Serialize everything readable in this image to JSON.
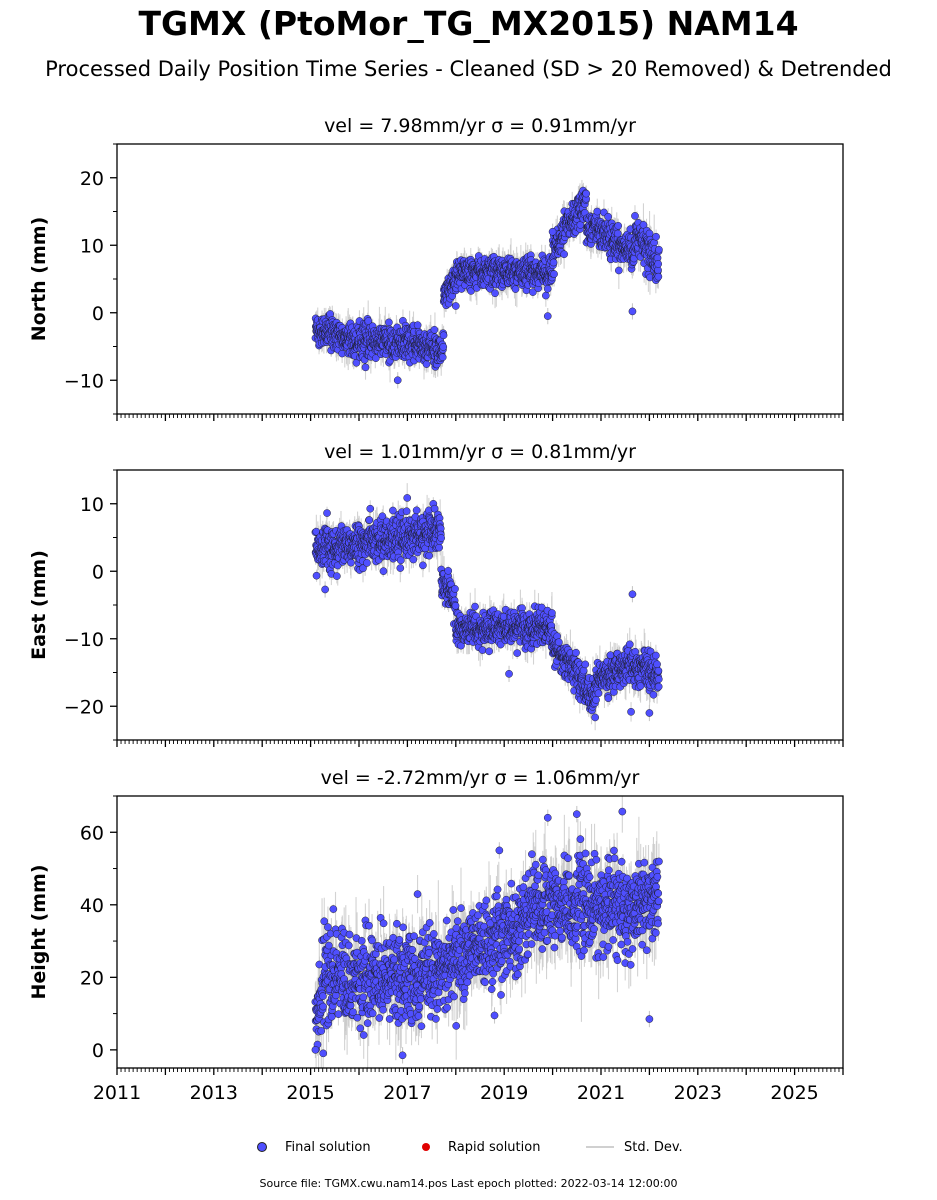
{
  "title": "TGMX (PtoMor_TG_MX2015) NAM14",
  "subtitle": "Processed Daily Position Time Series - Cleaned (SD > 20 Removed) & Detrended",
  "legend": {
    "final_label": "Final solution",
    "rapid_label": "Rapid solution",
    "std_label": "Std. Dev."
  },
  "footer": "Source file: TGMX.cwu.nam14.pos  Last epoch plotted: 2022-03-14 12:00:00",
  "colors": {
    "final": "#4f4fff",
    "rapid": "#e00000",
    "std": "#c8c8c8"
  },
  "chart_data": [
    {
      "type": "scatter",
      "title": "vel = 7.98mm/yr   σ = 0.91mm/yr",
      "ylabel": "North (mm)",
      "xlim": [
        2011,
        2026
      ],
      "ylim": [
        -15,
        25
      ],
      "yticks": [
        -10,
        0,
        10,
        20
      ],
      "ytick_labels": [
        "−10",
        "0",
        "10",
        "20"
      ],
      "xticks": [
        2011,
        2013,
        2015,
        2017,
        2019,
        2021,
        2023,
        2025
      ],
      "series": [
        {
          "name": "Final solution",
          "segments": [
            {
              "start": 2015.1,
              "end": 2017.75,
              "level": [
                -2.5,
                -4,
                -4.5,
                -5.5
              ],
              "noise": 1.2
            },
            {
              "start": 2017.75,
              "end": 2018.0,
              "level": [
                2,
                5
              ],
              "noise": 1.0
            },
            {
              "start": 2018.0,
              "end": 2020.0,
              "level": [
                6,
                6
              ],
              "noise": 1.1
            },
            {
              "start": 2020.0,
              "end": 2020.7,
              "level": [
                9,
                17
              ],
              "noise": 1.2
            },
            {
              "start": 2020.7,
              "end": 2021.7,
              "level": [
                13,
                9
              ],
              "noise": 1.2
            },
            {
              "start": 2021.7,
              "end": 2022.2,
              "level": [
                12,
                7
              ],
              "noise": 1.5
            }
          ],
          "outliers": [
            {
              "x": 2016.8,
              "y": -10
            },
            {
              "x": 2019.9,
              "y": -0.5
            },
            {
              "x": 2021.65,
              "y": 0.2
            },
            {
              "x": 2018.0,
              "y": 1
            },
            {
              "x": 2020.0,
              "y": 12
            }
          ]
        }
      ]
    },
    {
      "type": "scatter",
      "title": "vel = 1.01mm/yr   σ = 0.81mm/yr",
      "ylabel": "East (mm)",
      "xlim": [
        2011,
        2026
      ],
      "ylim": [
        -25,
        15
      ],
      "yticks": [
        -20,
        -10,
        0,
        10
      ],
      "ytick_labels": [
        "−20",
        "−10",
        "0",
        "10"
      ],
      "xticks": [
        2011,
        2013,
        2015,
        2017,
        2019,
        2021,
        2023,
        2025
      ],
      "series": [
        {
          "name": "Final solution",
          "segments": [
            {
              "start": 2015.1,
              "end": 2017.7,
              "level": [
                3,
                4.5,
                6
              ],
              "noise": 1.5
            },
            {
              "start": 2017.7,
              "end": 2018.0,
              "level": [
                -1,
                -5
              ],
              "noise": 1.2
            },
            {
              "start": 2018.0,
              "end": 2020.0,
              "level": [
                -8.5,
                -8.5
              ],
              "noise": 1.2
            },
            {
              "start": 2020.0,
              "end": 2020.9,
              "level": [
                -11,
                -19
              ],
              "noise": 1.3
            },
            {
              "start": 2020.9,
              "end": 2022.2,
              "level": [
                -16,
                -14,
                -15
              ],
              "noise": 1.4
            }
          ],
          "outliers": [
            {
              "x": 2015.3,
              "y": -2.7
            },
            {
              "x": 2021.65,
              "y": -3.4
            },
            {
              "x": 2016.7,
              "y": 9
            },
            {
              "x": 2019.1,
              "y": -15.2
            },
            {
              "x": 2022.0,
              "y": -21
            }
          ]
        }
      ]
    },
    {
      "type": "scatter",
      "title": "vel = -2.72mm/yr   σ = 1.06mm/yr",
      "ylabel": "Height (mm)",
      "xlim": [
        2011,
        2026
      ],
      "ylim": [
        -5,
        70
      ],
      "yticks": [
        0,
        20,
        40,
        60
      ],
      "ytick_labels": [
        "0",
        "20",
        "40",
        "60"
      ],
      "xticks": [
        2011,
        2013,
        2015,
        2017,
        2019,
        2021,
        2023,
        2025
      ],
      "series": [
        {
          "name": "Final solution",
          "segments": [
            {
              "start": 2015.1,
              "end": 2015.3,
              "level": [
                5,
                20
              ],
              "noise": 6
            },
            {
              "start": 2015.3,
              "end": 2017.5,
              "level": [
                20,
                20
              ],
              "noise": 6
            },
            {
              "start": 2017.5,
              "end": 2019.5,
              "level": [
                22,
                35
              ],
              "noise": 5.5
            },
            {
              "start": 2019.5,
              "end": 2022.2,
              "level": [
                40,
                40
              ],
              "noise": 6
            }
          ],
          "outliers": [
            {
              "x": 2015.1,
              "y": 0
            },
            {
              "x": 2016.9,
              "y": -1.5
            },
            {
              "x": 2019.9,
              "y": 64
            },
            {
              "x": 2020.5,
              "y": 65
            },
            {
              "x": 2022.0,
              "y": 8.5
            },
            {
              "x": 2018.8,
              "y": 9.5
            },
            {
              "x": 2018.9,
              "y": 55
            }
          ]
        }
      ]
    }
  ]
}
